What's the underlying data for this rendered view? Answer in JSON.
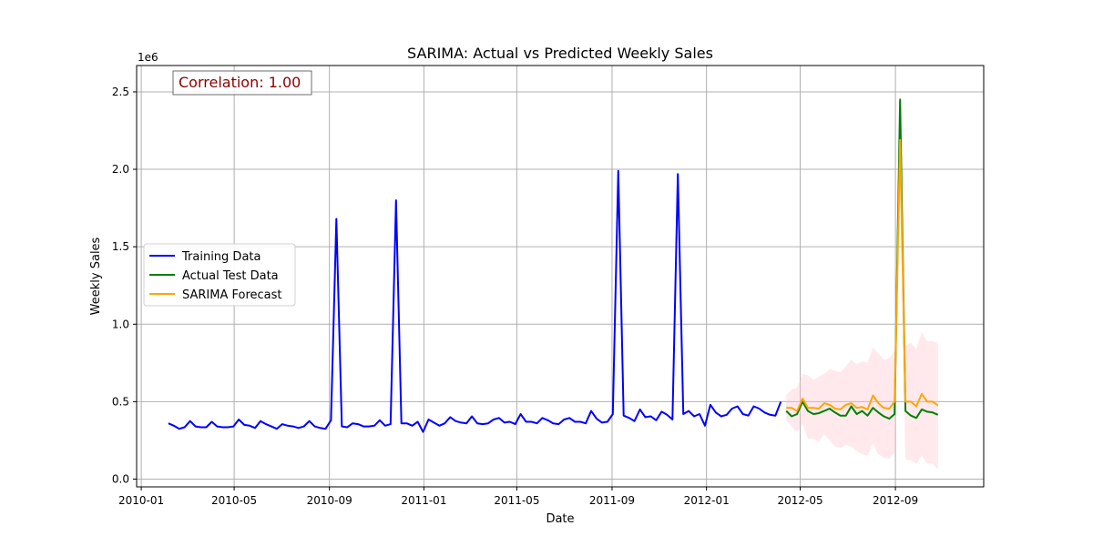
{
  "chart_data": {
    "type": "line",
    "title": "SARIMA: Actual vs Predicted Weekly Sales",
    "xlabel": "Date",
    "ylabel": "Weekly Sales",
    "y_offset_label": "1e6",
    "ylim": [
      -0.05,
      2.67
    ],
    "xlim": [
      "2009-12-26",
      "2012-12-24"
    ],
    "grid": true,
    "legend_placement": "center-left",
    "annotation": {
      "text": "Correlation: 1.00",
      "color": "#8b0000"
    },
    "x_ticks": [
      {
        "date": "2010-01-01",
        "label": "2010-01"
      },
      {
        "date": "2010-05-01",
        "label": "2010-05"
      },
      {
        "date": "2010-09-01",
        "label": "2010-09"
      },
      {
        "date": "2011-01-01",
        "label": "2011-01"
      },
      {
        "date": "2011-05-01",
        "label": "2011-05"
      },
      {
        "date": "2011-09-01",
        "label": "2011-09"
      },
      {
        "date": "2012-01-01",
        "label": "2012-01"
      },
      {
        "date": "2012-05-01",
        "label": "2012-05"
      },
      {
        "date": "2012-09-01",
        "label": "2012-09"
      }
    ],
    "y_ticks": [
      {
        "value": 0.0,
        "label": "0.0"
      },
      {
        "value": 0.5,
        "label": "0.5"
      },
      {
        "value": 1.0,
        "label": "1.0"
      },
      {
        "value": 1.5,
        "label": "1.5"
      },
      {
        "value": 2.0,
        "label": "2.0"
      },
      {
        "value": 2.5,
        "label": "2.5"
      }
    ],
    "series": [
      {
        "name": "Training Data",
        "color": "#0000ff",
        "start": "2010-02-05",
        "step_days": 7,
        "values": [
          0.36,
          0.345,
          0.325,
          0.335,
          0.375,
          0.34,
          0.335,
          0.335,
          0.37,
          0.34,
          0.335,
          0.335,
          0.34,
          0.385,
          0.35,
          0.345,
          0.33,
          0.375,
          0.355,
          0.34,
          0.325,
          0.355,
          0.345,
          0.34,
          0.33,
          0.34,
          0.375,
          0.34,
          0.33,
          0.325,
          0.38,
          1.68,
          0.34,
          0.335,
          0.36,
          0.355,
          0.34,
          0.34,
          0.345,
          0.38,
          0.345,
          0.355,
          1.8,
          0.36,
          0.36,
          0.345,
          0.37,
          0.305,
          0.385,
          0.365,
          0.345,
          0.36,
          0.4,
          0.375,
          0.365,
          0.36,
          0.405,
          0.36,
          0.355,
          0.36,
          0.385,
          0.395,
          0.365,
          0.37,
          0.355,
          0.42,
          0.37,
          0.37,
          0.36,
          0.395,
          0.38,
          0.36,
          0.355,
          0.385,
          0.395,
          0.37,
          0.37,
          0.36,
          0.44,
          0.39,
          0.365,
          0.37,
          0.42,
          1.99,
          0.41,
          0.395,
          0.375,
          0.45,
          0.4,
          0.405,
          0.38,
          0.435,
          0.415,
          0.385,
          1.97,
          0.42,
          0.44,
          0.405,
          0.42,
          0.345,
          0.48,
          0.43,
          0.405,
          0.415,
          0.455,
          0.47,
          0.42,
          0.41,
          0.47,
          0.455,
          0.43,
          0.415,
          0.41,
          0.5
        ]
      },
      {
        "name": "Actual Test Data",
        "color": "#008000",
        "start": "2012-04-13",
        "step_days": 7,
        "values": [
          0.44,
          0.405,
          0.42,
          0.5,
          0.44,
          0.42,
          0.425,
          0.44,
          0.455,
          0.43,
          0.41,
          0.41,
          0.47,
          0.42,
          0.44,
          0.41,
          0.46,
          0.43,
          0.405,
          0.39,
          0.42,
          2.45,
          0.44,
          0.41,
          0.395,
          0.45,
          0.435,
          0.43,
          0.415
        ]
      },
      {
        "name": "SARIMA Forecast",
        "color": "#ffa500",
        "start": "2012-04-13",
        "step_days": 7,
        "values": [
          0.46,
          0.46,
          0.44,
          0.52,
          0.46,
          0.46,
          0.455,
          0.49,
          0.48,
          0.455,
          0.45,
          0.48,
          0.49,
          0.46,
          0.465,
          0.45,
          0.54,
          0.49,
          0.46,
          0.455,
          0.5,
          2.19,
          0.5,
          0.5,
          0.47,
          0.55,
          0.5,
          0.5,
          0.475
        ]
      }
    ],
    "confidence_band": {
      "color": "#ffc0cb",
      "start": "2012-04-13",
      "step_days": 7,
      "upper": [
        0.54,
        0.58,
        0.59,
        0.68,
        0.67,
        0.64,
        0.66,
        0.68,
        0.71,
        0.7,
        0.69,
        0.73,
        0.77,
        0.74,
        0.76,
        0.75,
        0.85,
        0.81,
        0.77,
        0.78,
        0.83,
        2.55,
        0.86,
        0.88,
        0.84,
        0.95,
        0.89,
        0.89,
        0.88
      ],
      "lower": [
        0.38,
        0.34,
        0.3,
        0.36,
        0.26,
        0.26,
        0.24,
        0.29,
        0.25,
        0.21,
        0.2,
        0.22,
        0.21,
        0.18,
        0.16,
        0.15,
        0.23,
        0.16,
        0.14,
        0.13,
        0.17,
        1.83,
        0.13,
        0.12,
        0.1,
        0.15,
        0.1,
        0.1,
        0.06
      ]
    }
  }
}
